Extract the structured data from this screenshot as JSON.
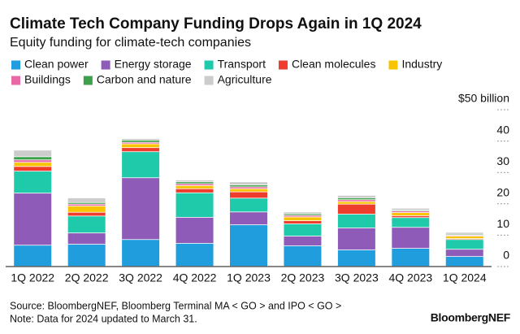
{
  "chart_data": {
    "type": "stacked_bar",
    "title": "Climate Tech Company Funding Drops Again in 1Q 2024",
    "subtitle": "Equity funding for climate-tech companies",
    "source": "Source: BloombergNEF, Bloomberg Terminal MA < GO > and IPO < GO >",
    "note": "Note: Data for 2024 updated to March 31.",
    "branding": "BloombergNEF",
    "categories": [
      "1Q 2022",
      "2Q 2022",
      "3Q 2022",
      "4Q 2022",
      "1Q 2023",
      "2Q 2023",
      "3Q 2023",
      "4Q 2023",
      "1Q 2024"
    ],
    "series": [
      {
        "name": "Clean power",
        "color": "#1f9ddd",
        "values": [
          6.7,
          7,
          8.5,
          7.3,
          13.2,
          6.5,
          5.2,
          5.7,
          3.1
        ]
      },
      {
        "name": "Energy storage",
        "color": "#8e5cb8",
        "values": [
          16.6,
          3.6,
          19.7,
          8.3,
          4.1,
          3.1,
          7,
          6.7,
          2.3
        ]
      },
      {
        "name": "Transport",
        "color": "#1ecaa9",
        "values": [
          7,
          5.4,
          8.3,
          7.8,
          4.4,
          3.9,
          4.4,
          3.1,
          3.1
        ]
      },
      {
        "name": "Clean molecules",
        "color": "#ee3d2c",
        "values": [
          1.5,
          1.2,
          1.3,
          1.3,
          2,
          1,
          3.2,
          0.6,
          0.3
        ]
      },
      {
        "name": "Industry",
        "color": "#f8c400",
        "values": [
          1.3,
          2,
          1.2,
          1,
          1,
          1.2,
          0.8,
          1,
          0.8
        ]
      },
      {
        "name": "Buildings",
        "color": "#e969a6",
        "values": [
          0.8,
          0.6,
          0.5,
          0.6,
          0.6,
          0.5,
          0.6,
          0.5,
          0.3
        ]
      },
      {
        "name": "Carbon and nature",
        "color": "#3da04a",
        "values": [
          1,
          0.5,
          0.7,
          0.6,
          0.6,
          0.5,
          0.6,
          0.3,
          0.3
        ]
      },
      {
        "name": "Agriculture",
        "color": "#cccccc",
        "values": [
          2.1,
          1.5,
          0.5,
          0.6,
          1,
          0.6,
          0.8,
          0.6,
          0.6
        ]
      }
    ],
    "ylim": [
      0,
      50
    ],
    "yticks": [
      0,
      10,
      20,
      30,
      40,
      {
        "value": 50,
        "label": "$50 billion"
      }
    ],
    "grid": false
  }
}
